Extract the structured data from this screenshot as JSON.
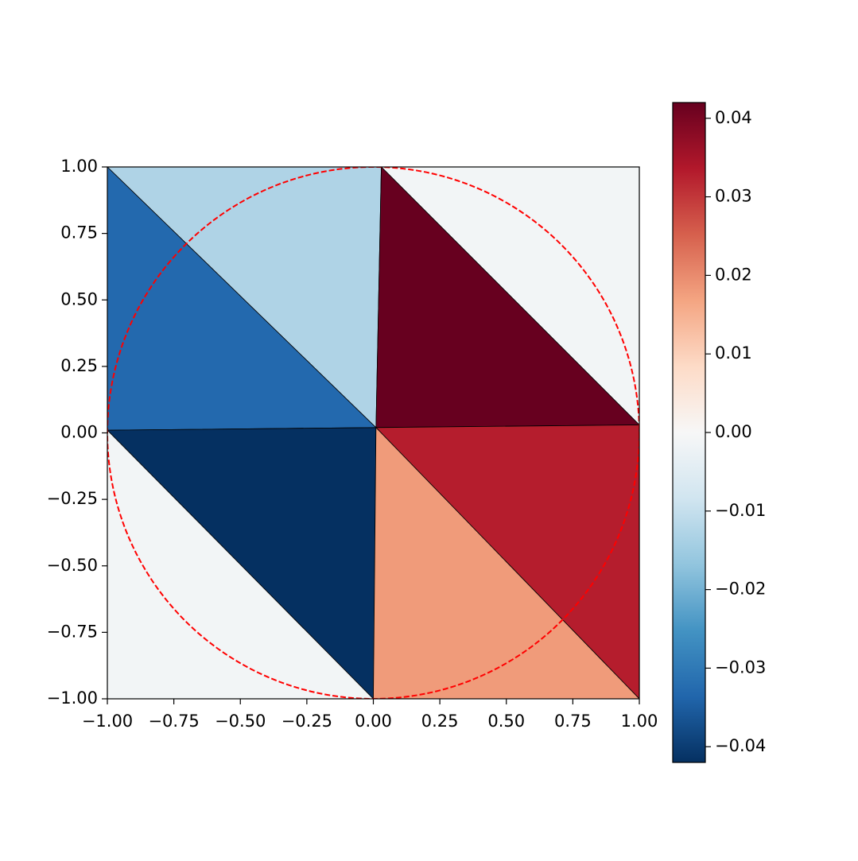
{
  "chart_data": {
    "type": "tripcolor",
    "xlim": [
      -1,
      1
    ],
    "ylim": [
      -1,
      1
    ],
    "xticks": [
      {
        "value": -1,
        "label": "−1.00"
      },
      {
        "value": -0.75,
        "label": "−0.75"
      },
      {
        "value": -0.5,
        "label": "−0.50"
      },
      {
        "value": -0.25,
        "label": "−0.25"
      },
      {
        "value": 0,
        "label": "0.00"
      },
      {
        "value": 0.25,
        "label": "0.25"
      },
      {
        "value": 0.5,
        "label": "0.50"
      },
      {
        "value": 0.75,
        "label": "0.75"
      },
      {
        "value": 1,
        "label": "1.00"
      }
    ],
    "yticks": [
      {
        "value": -1,
        "label": "−1.00"
      },
      {
        "value": -0.75,
        "label": "−0.75"
      },
      {
        "value": -0.5,
        "label": "−0.50"
      },
      {
        "value": -0.25,
        "label": "−0.25"
      },
      {
        "value": 0,
        "label": "0.00"
      },
      {
        "value": 0.25,
        "label": "0.25"
      },
      {
        "value": 0.5,
        "label": "0.50"
      },
      {
        "value": 0.75,
        "label": "0.75"
      },
      {
        "value": 1,
        "label": "1.00"
      }
    ],
    "triangles": [
      {
        "vertices": [
          [
            -1,
            1
          ],
          [
            0.03,
            1
          ],
          [
            0.01,
            0.02
          ]
        ],
        "value": -0.013
      },
      {
        "vertices": [
          [
            -1,
            1
          ],
          [
            -1,
            0.01
          ],
          [
            0.01,
            0.02
          ]
        ],
        "value": -0.033
      },
      {
        "vertices": [
          [
            0.03,
            1
          ],
          [
            1,
            1
          ],
          [
            1,
            0.03
          ]
        ],
        "value": -0.001
      },
      {
        "vertices": [
          [
            0.03,
            1
          ],
          [
            0.01,
            0.02
          ],
          [
            1,
            0.03
          ]
        ],
        "value": 0.042
      },
      {
        "vertices": [
          [
            -1,
            0.01
          ],
          [
            0.01,
            0.02
          ],
          [
            0,
            -1
          ]
        ],
        "value": -0.042
      },
      {
        "vertices": [
          [
            -1,
            0.01
          ],
          [
            0,
            -1
          ],
          [
            -1,
            -1
          ]
        ],
        "value": -0.001
      },
      {
        "vertices": [
          [
            0.01,
            0.02
          ],
          [
            1,
            0.03
          ],
          [
            1,
            -1
          ]
        ],
        "value": 0.033
      },
      {
        "vertices": [
          [
            0.01,
            0.02
          ],
          [
            1,
            -1
          ],
          [
            0,
            -1
          ]
        ],
        "value": 0.018
      }
    ],
    "edge_color": "#000000",
    "circle": {
      "radius": 1,
      "color": "#ff0000",
      "dashed": true
    },
    "colormap": [
      "#053061",
      "#2166ac",
      "#4393c3",
      "#92c5de",
      "#d1e5f0",
      "#f7f7f7",
      "#fddbc7",
      "#f4a582",
      "#d6604d",
      "#b2182b",
      "#67001f"
    ],
    "clim": [
      -0.042,
      0.042
    ],
    "cticks": [
      {
        "value": -0.04,
        "label": "−0.04"
      },
      {
        "value": -0.03,
        "label": "−0.03"
      },
      {
        "value": -0.02,
        "label": "−0.02"
      },
      {
        "value": -0.01,
        "label": "−0.01"
      },
      {
        "value": 0,
        "label": "0.00"
      },
      {
        "value": 0.01,
        "label": "0.01"
      },
      {
        "value": 0.02,
        "label": "0.02"
      },
      {
        "value": 0.03,
        "label": "0.03"
      },
      {
        "value": 0.04,
        "label": "0.04"
      }
    ]
  }
}
